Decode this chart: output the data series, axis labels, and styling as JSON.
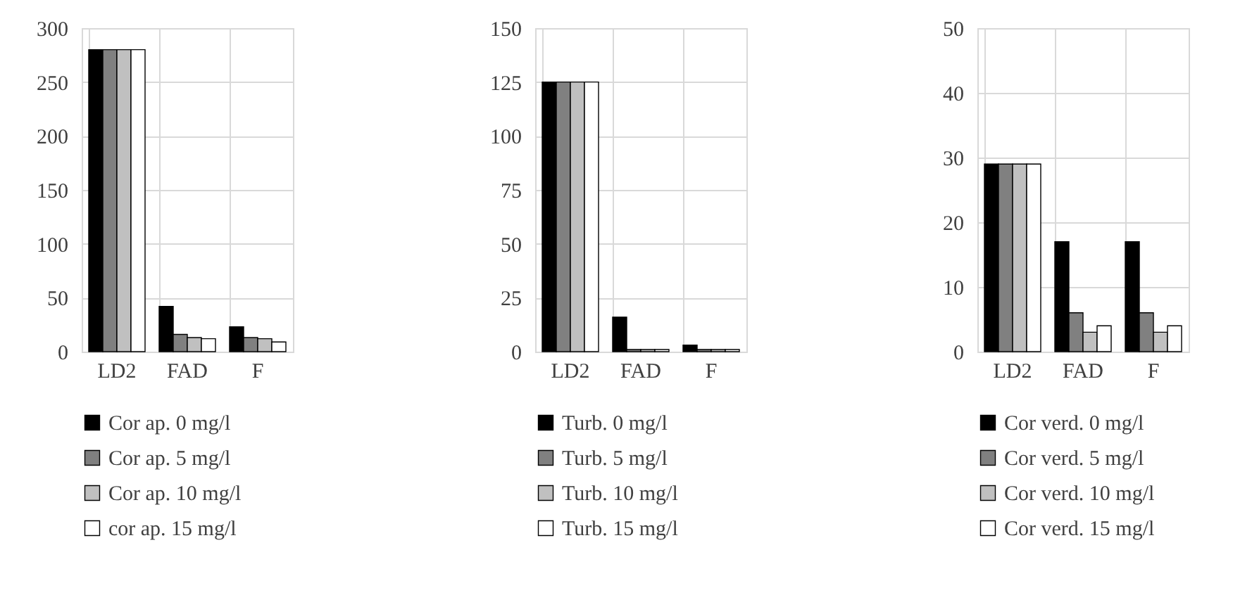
{
  "chart_data": [
    {
      "type": "bar",
      "categories": [
        "LD2",
        "FAD",
        "F"
      ],
      "series": [
        {
          "name": "Cor ap. 0 mg/l",
          "color": "#000000",
          "values": [
            280,
            42,
            23
          ]
        },
        {
          "name": "Cor ap. 5 mg/l",
          "color": "#808080",
          "values": [
            280,
            16,
            13
          ]
        },
        {
          "name": "Cor ap. 10 mg/l",
          "color": "#c0c0c0",
          "values": [
            280,
            13,
            12
          ]
        },
        {
          "name": "cor ap. 15 mg/l",
          "color": "#ffffff",
          "values": [
            280,
            12,
            9
          ]
        }
      ],
      "ylim": [
        0,
        300
      ],
      "yticks": [
        0,
        50,
        100,
        150,
        200,
        250,
        300
      ],
      "grid": true,
      "legend": "bottom"
    },
    {
      "type": "bar",
      "categories": [
        "LD2",
        "FAD",
        "F"
      ],
      "series": [
        {
          "name": "Turb. 0 mg/l",
          "color": "#000000",
          "values": [
            125,
            16,
            3
          ]
        },
        {
          "name": "Turb. 5 mg/l",
          "color": "#808080",
          "values": [
            125,
            1,
            1
          ]
        },
        {
          "name": "Turb. 10 mg/l",
          "color": "#c0c0c0",
          "values": [
            125,
            1,
            1
          ]
        },
        {
          "name": "Turb. 15 mg/l",
          "color": "#ffffff",
          "values": [
            125,
            1,
            1
          ]
        }
      ],
      "ylim": [
        0,
        150
      ],
      "yticks": [
        0,
        25,
        50,
        75,
        100,
        125,
        150
      ],
      "grid": true,
      "legend": "bottom"
    },
    {
      "type": "bar",
      "categories": [
        "LD2",
        "FAD",
        "F"
      ],
      "series": [
        {
          "name": "Cor verd. 0 mg/l",
          "color": "#000000",
          "values": [
            29,
            17,
            17
          ]
        },
        {
          "name": "Cor verd. 5 mg/l",
          "color": "#808080",
          "values": [
            29,
            6,
            6
          ]
        },
        {
          "name": "Cor verd. 10 mg/l",
          "color": "#c0c0c0",
          "values": [
            29,
            3,
            3
          ]
        },
        {
          "name": "Cor verd. 15 mg/l",
          "color": "#ffffff",
          "values": [
            29,
            4,
            4
          ]
        }
      ],
      "ylim": [
        0,
        50
      ],
      "yticks": [
        0,
        10,
        20,
        30,
        40,
        50
      ],
      "grid": true,
      "legend": "bottom"
    }
  ]
}
